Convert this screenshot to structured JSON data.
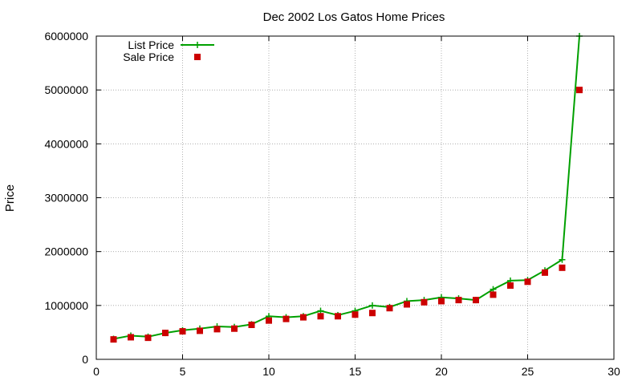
{
  "chart_data": {
    "type": "line",
    "title": "Dec 2002 Los Gatos Home Prices",
    "xlabel": "",
    "ylabel": "Price",
    "xlim": [
      0,
      30
    ],
    "ylim": [
      0,
      6000000
    ],
    "xticks": [
      0,
      5,
      10,
      15,
      20,
      25,
      30
    ],
    "yticks": [
      0,
      1000000,
      2000000,
      3000000,
      4000000,
      5000000,
      6000000
    ],
    "grid": true,
    "legend_position": "top-left",
    "series": [
      {
        "name": "List Price",
        "style": "line-with-plus-markers",
        "color": "#00a000",
        "x": [
          1,
          2,
          3,
          4,
          5,
          6,
          7,
          8,
          9,
          10,
          11,
          12,
          13,
          14,
          15,
          16,
          17,
          18,
          19,
          20,
          21,
          22,
          23,
          24,
          25,
          26,
          27,
          28
        ],
        "values": [
          380000,
          440000,
          420000,
          490000,
          540000,
          570000,
          610000,
          600000,
          650000,
          800000,
          780000,
          800000,
          900000,
          820000,
          900000,
          1000000,
          970000,
          1080000,
          1100000,
          1150000,
          1130000,
          1100000,
          1300000,
          1460000,
          1470000,
          1650000,
          1850000,
          6000000
        ]
      },
      {
        "name": "Sale Price",
        "style": "square-markers",
        "color": "#cc0000",
        "x": [
          1,
          2,
          3,
          4,
          5,
          6,
          7,
          8,
          9,
          10,
          11,
          12,
          13,
          14,
          15,
          16,
          17,
          18,
          19,
          20,
          21,
          22,
          23,
          24,
          25,
          26,
          27,
          28
        ],
        "values": [
          370000,
          410000,
          400000,
          490000,
          520000,
          530000,
          560000,
          570000,
          640000,
          720000,
          750000,
          780000,
          800000,
          800000,
          830000,
          860000,
          950000,
          1020000,
          1060000,
          1080000,
          1100000,
          1100000,
          1200000,
          1370000,
          1440000,
          1610000,
          1700000,
          5000000
        ]
      }
    ]
  }
}
